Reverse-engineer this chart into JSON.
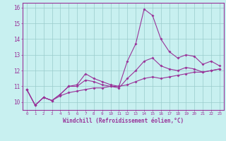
{
  "title": "",
  "xlabel": "Windchill (Refroidissement éolien,°C)",
  "background_color": "#c8f0f0",
  "line_color": "#993399",
  "grid_color": "#99cccc",
  "x_values": [
    0,
    1,
    2,
    3,
    4,
    5,
    6,
    7,
    8,
    9,
    10,
    11,
    12,
    13,
    14,
    15,
    16,
    17,
    18,
    19,
    20,
    21,
    22,
    23
  ],
  "series1": [
    10.8,
    9.8,
    10.3,
    10.1,
    10.5,
    11.0,
    11.1,
    11.8,
    11.5,
    11.3,
    11.1,
    11.0,
    12.6,
    13.7,
    15.9,
    15.5,
    14.0,
    13.2,
    12.8,
    13.0,
    12.9,
    12.4,
    12.6,
    12.3
  ],
  "series2": [
    10.8,
    9.8,
    10.3,
    10.1,
    10.5,
    11.0,
    11.0,
    11.4,
    11.3,
    11.1,
    11.0,
    10.9,
    11.5,
    12.0,
    12.6,
    12.8,
    12.3,
    12.1,
    12.0,
    12.2,
    12.1,
    11.9,
    12.0,
    12.1
  ],
  "series3": [
    10.8,
    9.8,
    10.3,
    10.1,
    10.4,
    10.6,
    10.7,
    10.8,
    10.9,
    10.9,
    11.0,
    11.0,
    11.1,
    11.3,
    11.5,
    11.6,
    11.5,
    11.6,
    11.7,
    11.8,
    11.9,
    11.9,
    12.0,
    12.1
  ],
  "ylim": [
    9.5,
    16.3
  ],
  "xlim": [
    -0.5,
    23.5
  ],
  "yticks": [
    10,
    11,
    12,
    13,
    14,
    15,
    16
  ],
  "xticks": [
    0,
    1,
    2,
    3,
    4,
    5,
    6,
    7,
    8,
    9,
    10,
    11,
    12,
    13,
    14,
    15,
    16,
    17,
    18,
    19,
    20,
    21,
    22,
    23
  ],
  "xtick_labels": [
    "0",
    "1",
    "2",
    "3",
    "4",
    "5",
    "6",
    "7",
    "8",
    "9",
    "10",
    "11",
    "12",
    "13",
    "14",
    "15",
    "16",
    "17",
    "18",
    "19",
    "20",
    "21",
    "22",
    "23"
  ]
}
